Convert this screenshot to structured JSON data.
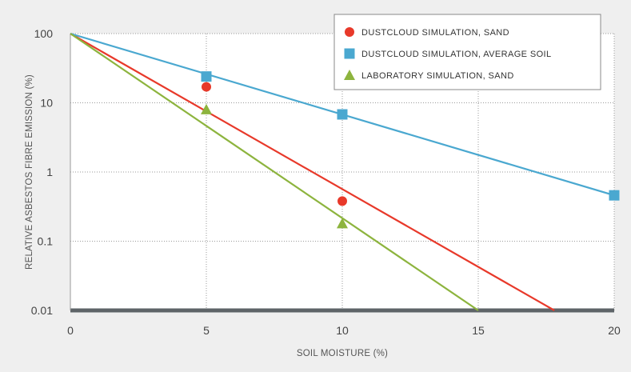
{
  "chart_data": {
    "type": "scatter",
    "xlabel": "SOIL MOISTURE (%)",
    "ylabel": "RELATIVE ASBESTOS FIBRE EMISSION (%)",
    "xlim": [
      0,
      20
    ],
    "ylim": [
      0.01,
      100
    ],
    "yscale": "log",
    "x_ticks": [
      0,
      5,
      10,
      15,
      20
    ],
    "y_ticks": [
      0.01,
      0.1,
      1,
      10,
      100
    ],
    "x_tick_labels": [
      "0",
      "5",
      "10",
      "15",
      "20"
    ],
    "y_tick_labels": [
      "0.01",
      "0.1",
      "1",
      "10",
      "100"
    ],
    "grid": "dotted",
    "legend_position": "top-right",
    "series": [
      {
        "name": "DUSTCLOUD SIMULATION, SAND",
        "color": "#e8392a",
        "marker": "circle",
        "points": [
          {
            "x": 5,
            "y": 17
          },
          {
            "x": 10,
            "y": 0.38
          }
        ],
        "fit_line": [
          {
            "x": 0,
            "y": 100
          },
          {
            "x": 17.8,
            "y": 0.01
          }
        ]
      },
      {
        "name": "DUSTCLOUD SIMULATION, AVERAGE SOIL",
        "color": "#4aa8d0",
        "marker": "square",
        "points": [
          {
            "x": 5,
            "y": 24
          },
          {
            "x": 10,
            "y": 6.8
          },
          {
            "x": 20,
            "y": 0.46
          }
        ],
        "fit_line": [
          {
            "x": 0,
            "y": 100
          },
          {
            "x": 20,
            "y": 0.46
          }
        ]
      },
      {
        "name": "LABORATORY SIMULATION, SAND",
        "color": "#8db43e",
        "marker": "triangle",
        "points": [
          {
            "x": 5,
            "y": 8
          },
          {
            "x": 10,
            "y": 0.18
          }
        ],
        "fit_line": [
          {
            "x": 0,
            "y": 100
          },
          {
            "x": 15,
            "y": 0.01
          }
        ]
      }
    ]
  }
}
